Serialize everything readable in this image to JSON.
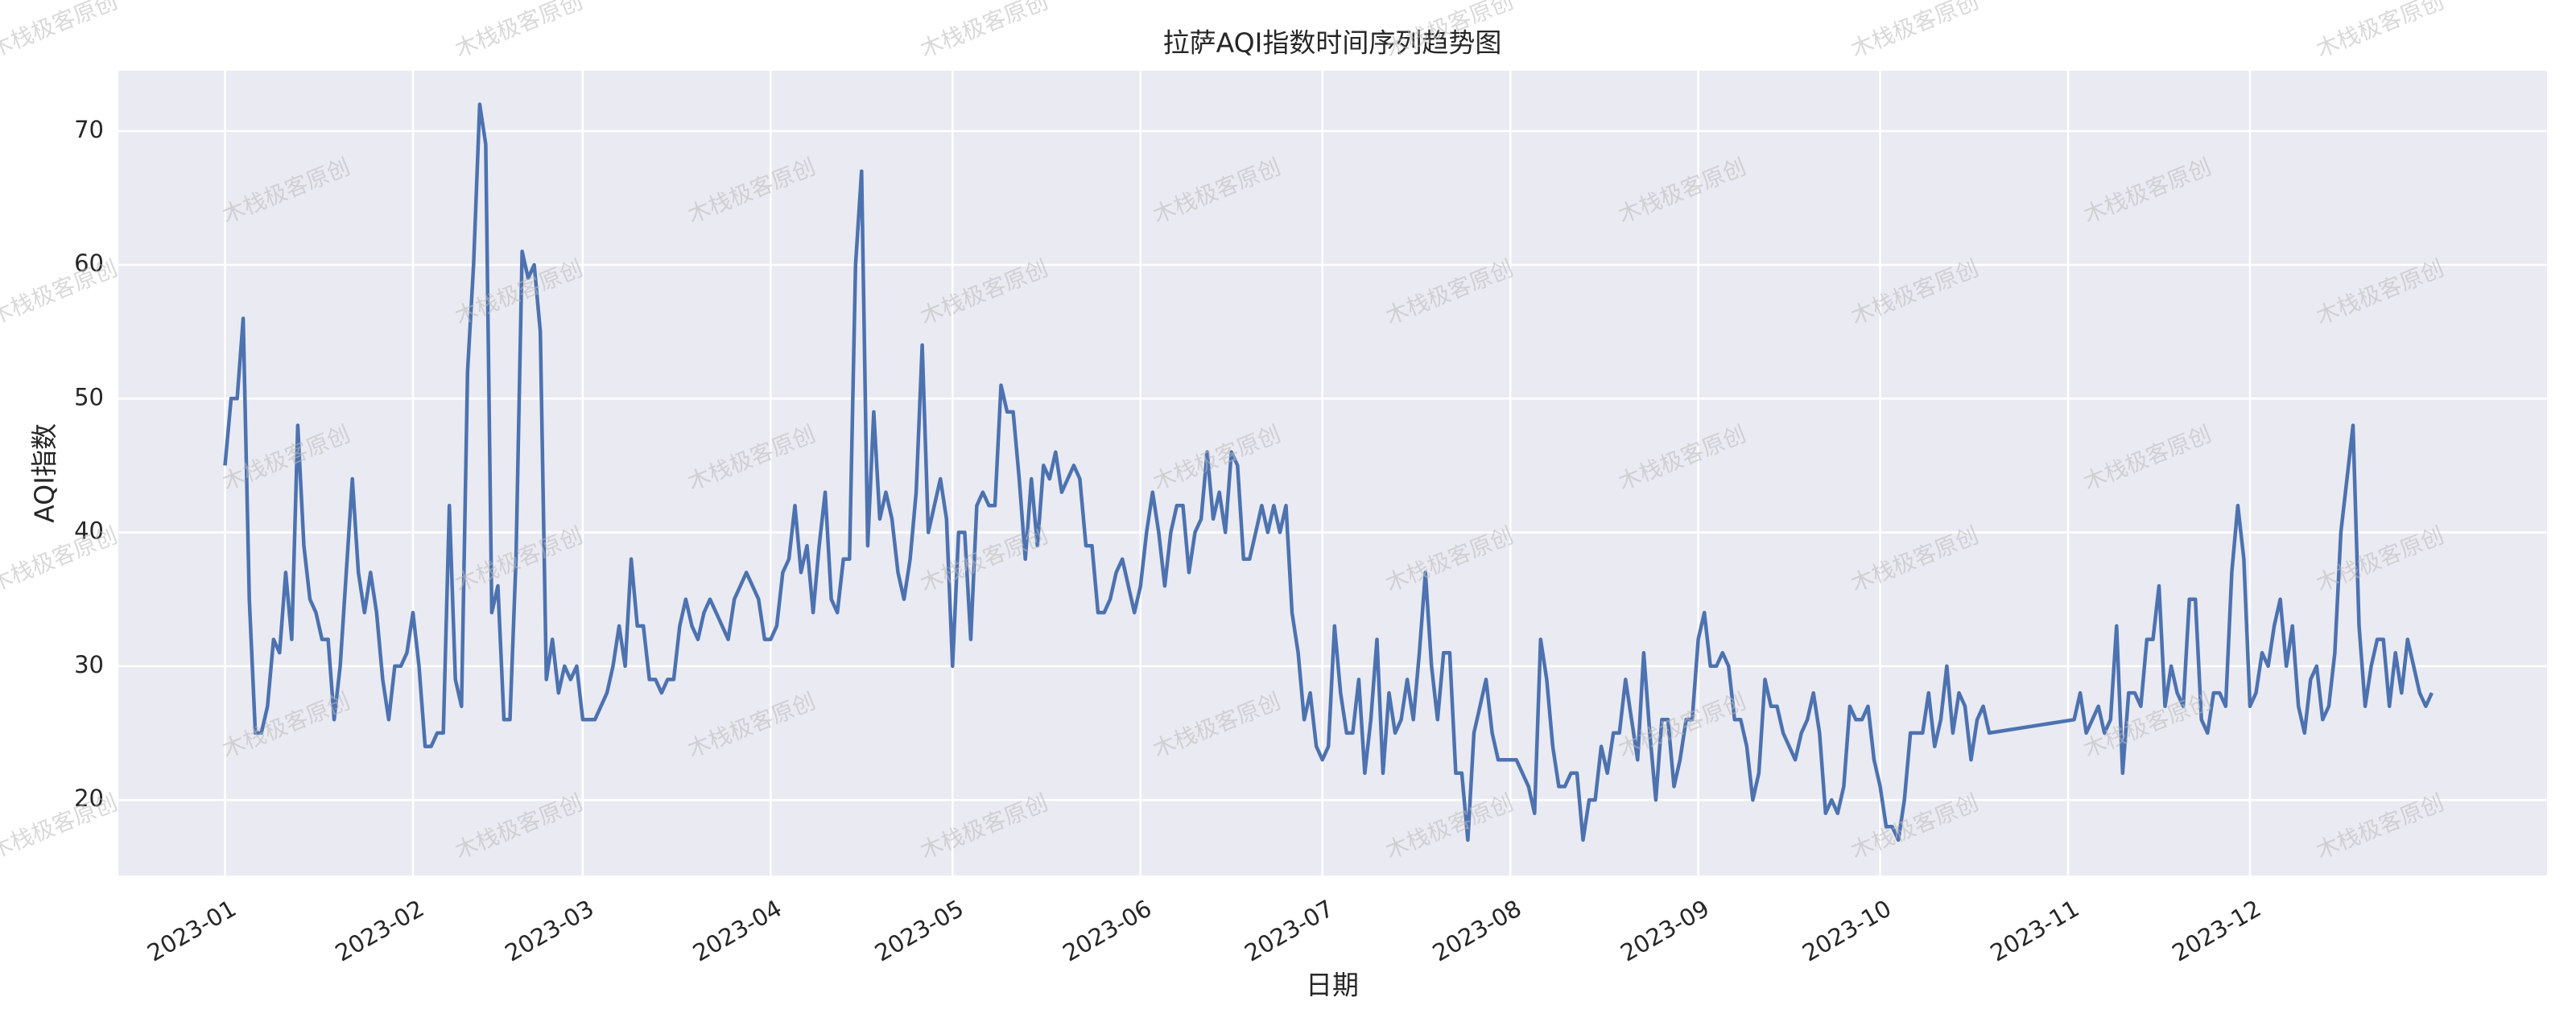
{
  "chart_data": {
    "type": "line",
    "title": "拉萨AQI指数时间序列趋势图",
    "x_label": "日期",
    "y_label": "AQI指数",
    "watermark": "木栈极客原创",
    "color": "#4c72b0",
    "grid": true,
    "xlim": [
      -17.6,
      383
    ],
    "ylim": [
      14.35,
      74.5
    ],
    "xticks": [
      {
        "value": 0,
        "label": "2023-01"
      },
      {
        "value": 31,
        "label": "2023-02"
      },
      {
        "value": 59,
        "label": "2023-03"
      },
      {
        "value": 90,
        "label": "2023-04"
      },
      {
        "value": 120,
        "label": "2023-05"
      },
      {
        "value": 151,
        "label": "2023-06"
      },
      {
        "value": 181,
        "label": "2023-07"
      },
      {
        "value": 212,
        "label": "2023-08"
      },
      {
        "value": 243,
        "label": "2023-09"
      },
      {
        "value": 273,
        "label": "2023-10"
      },
      {
        "value": 304,
        "label": "2023-11"
      },
      {
        "value": 334,
        "label": "2023-12"
      }
    ],
    "yticks": [
      20,
      30,
      40,
      50,
      60,
      70
    ],
    "x": [
      0,
      1,
      2,
      3,
      4,
      5,
      6,
      7,
      8,
      9,
      10,
      11,
      12,
      13,
      14,
      15,
      16,
      17,
      18,
      19,
      21,
      22,
      23,
      24,
      25,
      26,
      27,
      28,
      29,
      30,
      31,
      32,
      33,
      34,
      35,
      36,
      37,
      38,
      39,
      40,
      41,
      42,
      43,
      44,
      45,
      46,
      47,
      48,
      49,
      50,
      51,
      52,
      53,
      54,
      55,
      56,
      57,
      58,
      59,
      61,
      62,
      63,
      64,
      65,
      66,
      67,
      68,
      69,
      70,
      71,
      72,
      73,
      74,
      75,
      76,
      77,
      78,
      79,
      80,
      81,
      82,
      83,
      84,
      85,
      86,
      87,
      88,
      89,
      90,
      91,
      92,
      93,
      94,
      95,
      96,
      97,
      98,
      99,
      100,
      101,
      102,
      103,
      104,
      105,
      106,
      107,
      108,
      109,
      110,
      111,
      112,
      113,
      114,
      115,
      116,
      117,
      118,
      119,
      120,
      121,
      122,
      123,
      124,
      125,
      126,
      127,
      128,
      129,
      130,
      131,
      132,
      133,
      134,
      135,
      136,
      137,
      138,
      139,
      140,
      141,
      142,
      143,
      144,
      145,
      146,
      147,
      148,
      149,
      150,
      151,
      152,
      153,
      154,
      155,
      156,
      157,
      158,
      159,
      160,
      161,
      162,
      163,
      164,
      165,
      166,
      167,
      168,
      169,
      170,
      171,
      172,
      173,
      174,
      175,
      176,
      177,
      178,
      179,
      180,
      181,
      182,
      183,
      184,
      185,
      186,
      187,
      188,
      189,
      190,
      191,
      192,
      193,
      194,
      195,
      196,
      197,
      198,
      199,
      200,
      201,
      202,
      203,
      204,
      205,
      206,
      207,
      208,
      209,
      210,
      211,
      212,
      213,
      214,
      215,
      216,
      217,
      218,
      219,
      220,
      221,
      222,
      223,
      224,
      225,
      226,
      227,
      228,
      229,
      230,
      231,
      232,
      233,
      234,
      235,
      236,
      237,
      238,
      239,
      240,
      241,
      242,
      243,
      244,
      245,
      246,
      247,
      248,
      249,
      250,
      251,
      252,
      253,
      254,
      255,
      256,
      257,
      258,
      259,
      260,
      261,
      262,
      263,
      264,
      265,
      266,
      267,
      268,
      269,
      270,
      271,
      272,
      273,
      274,
      275,
      276,
      277,
      278,
      279,
      280,
      281,
      282,
      283,
      284,
      285,
      286,
      287,
      288,
      289,
      290,
      291,
      305,
      306,
      307,
      308,
      309,
      310,
      311,
      312,
      313,
      314,
      315,
      316,
      317,
      318,
      319,
      320,
      321,
      322,
      323,
      324,
      325,
      326,
      327,
      328,
      329,
      330,
      331,
      332,
      333,
      334,
      335,
      336,
      337,
      338,
      339,
      340,
      341,
      342,
      343,
      344,
      345,
      346,
      347,
      348,
      349,
      350,
      351,
      352,
      353,
      354,
      355,
      356,
      357,
      358,
      359,
      360,
      361,
      362,
      363,
      364
    ],
    "values": [
      45,
      50,
      50,
      56,
      35,
      25,
      25,
      27,
      32,
      31,
      37,
      32,
      48,
      39,
      35,
      34,
      32,
      32,
      26,
      30,
      44,
      37,
      34,
      37,
      34,
      29,
      26,
      30,
      30,
      31,
      34,
      30,
      24,
      24,
      25,
      25,
      42,
      29,
      27,
      52,
      60,
      72,
      69,
      34,
      36,
      26,
      26,
      38,
      61,
      59,
      60,
      55,
      29,
      32,
      28,
      30,
      29,
      30,
      26,
      26,
      27,
      28,
      30,
      33,
      30,
      38,
      33,
      33,
      29,
      29,
      28,
      29,
      29,
      33,
      35,
      33,
      32,
      34,
      35,
      34,
      33,
      32,
      35,
      36,
      37,
      36,
      35,
      32,
      32,
      33,
      37,
      38,
      42,
      37,
      39,
      34,
      39,
      43,
      35,
      34,
      38,
      38,
      60,
      67,
      39,
      49,
      41,
      43,
      41,
      37,
      35,
      38,
      43,
      54,
      40,
      42,
      44,
      41,
      30,
      40,
      40,
      32,
      42,
      43,
      42,
      42,
      51,
      49,
      49,
      44,
      38,
      44,
      39,
      45,
      44,
      46,
      43,
      44,
      45,
      44,
      39,
      39,
      34,
      34,
      35,
      37,
      38,
      36,
      34,
      36,
      40,
      43,
      40,
      36,
      40,
      42,
      42,
      37,
      40,
      41,
      46,
      41,
      43,
      40,
      46,
      45,
      38,
      38,
      40,
      42,
      40,
      42,
      40,
      42,
      34,
      31,
      26,
      28,
      24,
      23,
      24,
      33,
      28,
      25,
      25,
      29,
      22,
      26,
      32,
      22,
      28,
      25,
      26,
      29,
      26,
      31,
      37,
      30,
      26,
      31,
      31,
      22,
      22,
      17,
      25,
      27,
      29,
      25,
      23,
      23,
      23,
      23,
      22,
      21,
      19,
      32,
      29,
      24,
      21,
      21,
      22,
      22,
      17,
      20,
      20,
      24,
      22,
      25,
      25,
      29,
      26,
      23,
      31,
      25,
      20,
      26,
      26,
      21,
      23,
      26,
      26,
      32,
      34,
      30,
      30,
      31,
      30,
      26,
      26,
      24,
      20,
      22,
      29,
      27,
      27,
      25,
      24,
      23,
      25,
      26,
      28,
      25,
      19,
      20,
      19,
      21,
      27,
      26,
      26,
      27,
      23,
      21,
      18,
      18,
      17,
      20,
      25,
      25,
      25,
      28,
      24,
      26,
      30,
      25,
      28,
      27,
      23,
      26,
      27,
      25,
      26,
      28,
      25,
      26,
      27,
      25,
      26,
      33,
      22,
      28,
      28,
      27,
      32,
      32,
      36,
      27,
      30,
      28,
      27,
      35,
      35,
      26,
      25,
      28,
      28,
      27,
      37,
      42,
      38,
      27,
      28,
      31,
      30,
      33,
      35,
      30,
      33,
      27,
      25,
      29,
      30,
      26,
      27,
      31,
      40,
      44,
      48,
      33,
      27,
      30,
      32,
      32,
      27,
      31,
      28,
      32,
      30,
      28,
      27,
      28
    ]
  }
}
